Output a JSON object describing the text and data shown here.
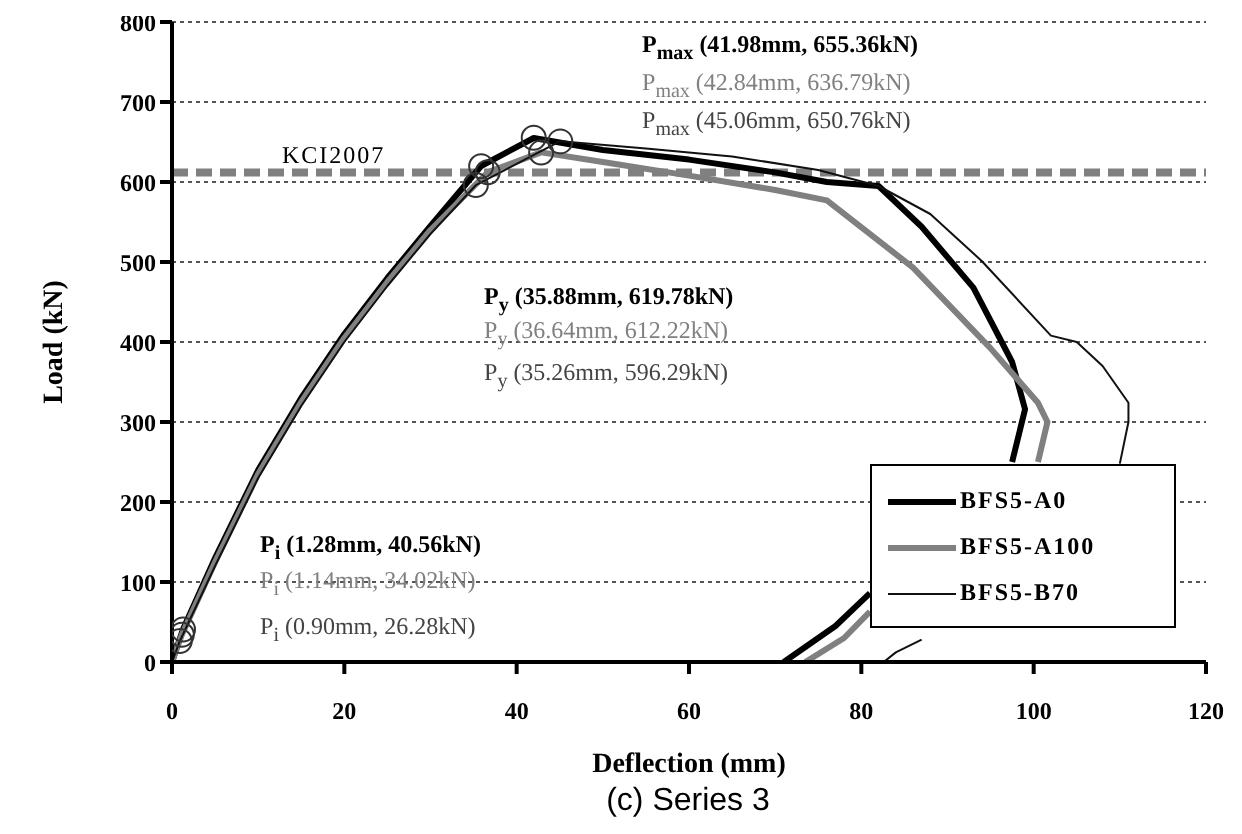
{
  "chart_data": {
    "type": "line",
    "xlabel": "Deflection (mm)",
    "ylabel": "Load (kN)",
    "xlim": [
      0,
      120
    ],
    "xticks": [
      0,
      20,
      40,
      60,
      80,
      100,
      120
    ],
    "ylim": [
      0,
      800
    ],
    "yticks": [
      0,
      100,
      200,
      300,
      400,
      500,
      600,
      700,
      800
    ],
    "grid": "y",
    "legend": "bottom right",
    "marker": "none",
    "line_style": "solid",
    "series": [
      {
        "name": "BFS5-A0",
        "color": "#000000",
        "x": [
          0,
          1.28,
          5,
          10,
          15,
          20,
          25,
          30,
          35.88,
          41.98,
          50,
          60,
          70,
          76,
          82,
          87,
          93,
          97.5,
          99,
          97.5,
          90,
          81,
          77,
          73,
          71
        ],
        "values": [
          0,
          41,
          130,
          240,
          330,
          410,
          480,
          545,
          620,
          655,
          640,
          628,
          612,
          600,
          595,
          544,
          468,
          375,
          316,
          250,
          null,
          86,
          45,
          15,
          0
        ]
      },
      {
        "name": "BFS5-A100",
        "color": "#808080",
        "x": [
          0,
          1.14,
          5,
          10,
          15,
          20,
          25,
          30,
          36.64,
          42.84,
          50,
          60,
          70,
          76,
          86,
          95,
          100.5,
          101.6,
          100.5,
          92,
          81,
          78,
          73.5
        ],
        "values": [
          0,
          34,
          125,
          235,
          325,
          405,
          475,
          540,
          612,
          637,
          625,
          608,
          590,
          577,
          493,
          392,
          324,
          300,
          250,
          null,
          63,
          30,
          0
        ]
      },
      {
        "name": "BFS5-B70",
        "color": "#111111",
        "x": [
          0,
          0.9,
          5,
          10,
          15,
          20,
          25,
          30,
          35.26,
          45.06,
          55,
          65,
          75,
          82,
          88,
          94,
          102,
          105,
          108,
          111,
          111,
          110,
          100,
          87,
          84,
          82.6
        ],
        "values": [
          0,
          26,
          120,
          230,
          320,
          400,
          470,
          535,
          596,
          651,
          642,
          632,
          615,
          595,
          560,
          501,
          408,
          400,
          370,
          324,
          300,
          248,
          null,
          28,
          12,
          0
        ]
      },
      {
        "type": "scatter",
        "marker": "circle",
        "color": "#333333",
        "x": [
          41.98,
          42.84,
          45.06,
          35.88,
          36.64,
          35.26,
          1.28,
          1.14,
          0.9
        ],
        "values": [
          655.36,
          636.79,
          650.76,
          619.78,
          612.22,
          596.29,
          40.56,
          34.02,
          26.28
        ]
      }
    ],
    "ref_lines": [
      {
        "axis": "y",
        "value": 612,
        "label": "KCI2007",
        "color": "#808080",
        "line_style": "dashed"
      }
    ],
    "annotations": [
      "P$_{max}$ (41.98mm, 655.36kN)",
      "P$_{max}$ (42.84mm, 636.79kN)",
      "P$_{max}$ (45.06mm, 650.76kN)",
      "P$_{y}$ (35.88mm, 619.78kN)",
      "P$_{y}$ (36.64mm, 612.22kN)",
      "P$_{y}$ (35.26mm, 596.29kN)",
      "P$_{i}$ (1.28mm, 40.56kN)",
      "P$_{i}$ (1.14mm, 34.02kN)",
      "P$_{i}$ (0.90mm, 26.28kN)",
      "(c) Series 3"
    ]
  }
}
